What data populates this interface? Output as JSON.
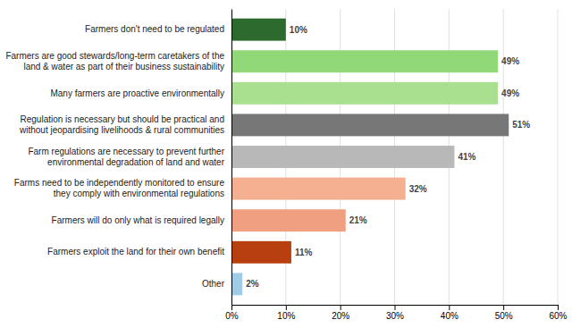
{
  "chart_data": {
    "type": "bar",
    "orientation": "horizontal",
    "categories": [
      "Farmers don't need to be regulated",
      "Farmers are good stewards/long-term caretakers of the\nland & water as part of their business sustainability",
      "Many farmers are proactive environmentally",
      "Regulation is necessary but should be practical and\nwithout jeopardising livelihoods & rural communities",
      "Farm regulations are necessary to prevent further\nenvironmental degradation of land and water",
      "Farms need to be independently monitored to ensure\nthey comply with environmental regulations",
      "Farmers will do only what is required legally",
      "Farmers exploit the land for their own benefit",
      "Other"
    ],
    "values": [
      10,
      49,
      49,
      51,
      41,
      32,
      21,
      11,
      2
    ],
    "value_labels": [
      "10%",
      "49%",
      "49%",
      "51%",
      "41%",
      "32%",
      "21%",
      "11%",
      "2%"
    ],
    "data_labels": true,
    "colors": [
      "#2d6a2d",
      "#90d878",
      "#a8e090",
      "#777777",
      "#b8b8b8",
      "#f4b090",
      "#f0a080",
      "#b84010",
      "#a0cce8"
    ],
    "xlim": [
      0,
      60
    ],
    "xticks": [
      {
        "value": 0,
        "label": "0%"
      },
      {
        "value": 10,
        "label": "10%"
      },
      {
        "value": 20,
        "label": "20%"
      },
      {
        "value": 30,
        "label": "30%"
      },
      {
        "value": 40,
        "label": "40%"
      },
      {
        "value": 50,
        "label": "50%"
      },
      {
        "value": 60,
        "label": "60%"
      }
    ],
    "grid": true
  }
}
